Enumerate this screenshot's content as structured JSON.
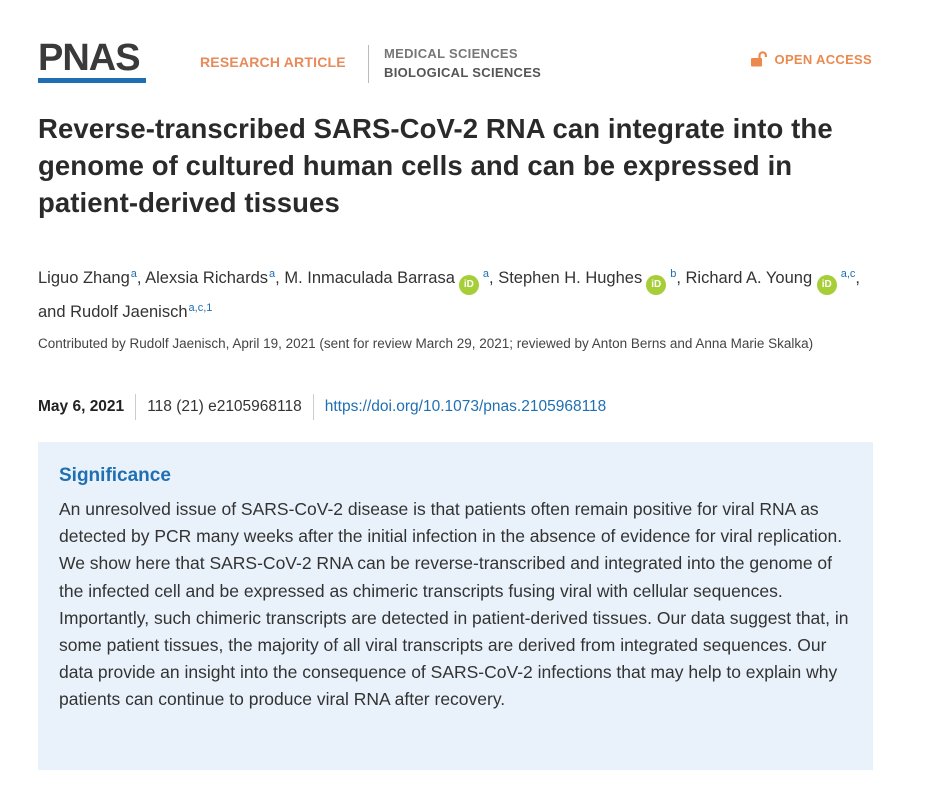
{
  "header": {
    "logo_text": "PNAS",
    "article_type": "RESEARCH ARTICLE",
    "subjects": [
      "MEDICAL SCIENCES",
      "BIOLOGICAL SCIENCES"
    ],
    "open_access": "OPEN ACCESS",
    "accent_color": "#1f6fb2",
    "orange_color": "#e88a5a"
  },
  "title": "Reverse-transcribed SARS-CoV-2 RNA can integrate into the genome of cultured human cells and can be expressed in patient-derived tissues",
  "authors": [
    {
      "name": "Liguo Zhang",
      "affil": "a",
      "orcid": false
    },
    {
      "name": "Alexsia Richards",
      "affil": "a",
      "orcid": false
    },
    {
      "name": "M. Inmaculada Barrasa",
      "affil": "a",
      "orcid": true
    },
    {
      "name": "Stephen H. Hughes",
      "affil": "b",
      "orcid": true
    },
    {
      "name": "Richard A. Young",
      "affil": "a,c",
      "orcid": true
    },
    {
      "name": "Rudolf Jaenisch",
      "affil": "a,c,1",
      "orcid": false
    }
  ],
  "author_separators": {
    "and": "and"
  },
  "orcid_label": "iD",
  "contributed": "Contributed by Rudolf Jaenisch, April 19, 2021 (sent for review March 29, 2021; reviewed by Anton Berns and Anna Marie Skalka)",
  "pub": {
    "date": "May 6, 2021",
    "volume": "118 (21) e2105968118",
    "doi": "https://doi.org/10.1073/pnas.2105968118"
  },
  "significance": {
    "heading": "Significance",
    "text": "An unresolved issue of SARS-CoV-2 disease is that patients often remain positive for viral RNA as detected by PCR many weeks after the initial infection in the absence of evidence for viral replication. We show here that SARS-CoV-2 RNA can be reverse-transcribed and integrated into the genome of the infected cell and be expressed as chimeric transcripts fusing viral with cellular sequences. Importantly, such chimeric transcripts are detected in patient-derived tissues. Our data suggest that, in some patient tissues, the majority of all viral transcripts are derived from integrated sequences. Our data provide an insight into the consequence of SARS-CoV-2 infections that may help to explain why patients can continue to produce viral RNA after recovery."
  }
}
